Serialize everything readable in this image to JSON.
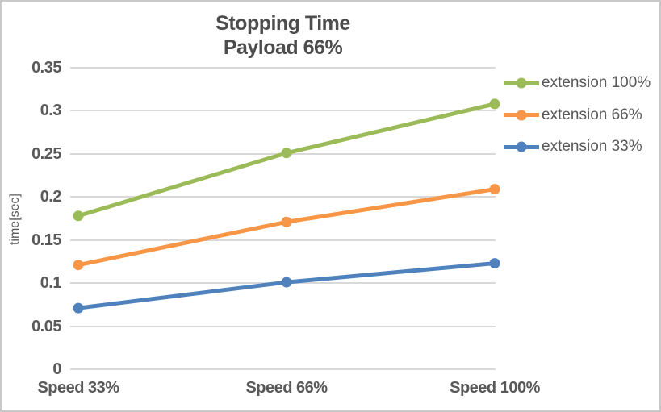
{
  "chart": {
    "title_line1": "Stopping Time",
    "title_line2": "Payload 66%",
    "y_axis_title": "time[sec]"
  },
  "chart_data": {
    "type": "line",
    "title": "Stopping Time",
    "subtitle": "Payload 66%",
    "categories": [
      "Speed 33%",
      "Speed 66%",
      "Speed 100%"
    ],
    "series": [
      {
        "name": "extension 100%",
        "color": "#9BBB59",
        "values": [
          0.178,
          0.251,
          0.308
        ]
      },
      {
        "name": "extension 66%",
        "color": "#F79646",
        "values": [
          0.121,
          0.171,
          0.209
        ]
      },
      {
        "name": "extension 33%",
        "color": "#4F81BD",
        "values": [
          0.071,
          0.101,
          0.123
        ]
      }
    ],
    "xlabel": "",
    "ylabel": "time[sec]",
    "ylim": [
      0,
      0.35
    ],
    "ytick_step": 0.05,
    "ytick_labels": [
      "0",
      "0.05",
      "0.1",
      "0.15",
      "0.2",
      "0.25",
      "0.3",
      "0.35"
    ],
    "grid": true,
    "legend_position": "right",
    "marker": "circle",
    "colors": {
      "text": "#595959",
      "title_text": "#4D4D4D",
      "gridline": "#D9D9D9",
      "border": "#C9C9C9",
      "background": "#FFFFFF"
    }
  }
}
